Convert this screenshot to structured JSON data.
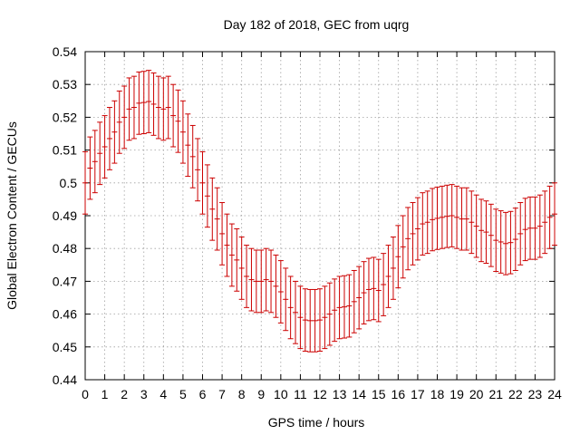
{
  "chart_data": {
    "type": "line",
    "title": "Day 182 of 2018, GEC from uqrg",
    "xlabel": "GPS time / hours",
    "ylabel": "Global Electron Content / GECUs",
    "xlim": [
      0,
      24
    ],
    "ylim": [
      0.44,
      0.54
    ],
    "xticks": [
      "0",
      "1",
      "2",
      "3",
      "4",
      "5",
      "6",
      "7",
      "8",
      "9",
      "10",
      "11",
      "12",
      "13",
      "14",
      "15",
      "16",
      "17",
      "18",
      "19",
      "20",
      "21",
      "22",
      "23",
      "24"
    ],
    "yticks": [
      "0.44",
      "0.45",
      "0.46",
      "0.47",
      "0.48",
      "0.49",
      "0.5",
      "0.51",
      "0.52",
      "0.53",
      "0.54"
    ],
    "grid": true,
    "colors": {
      "series": "#cc0000",
      "grid": "#a0a0a0",
      "axis": "#000000"
    },
    "series": [
      {
        "error": 0.0095,
        "x": [
          0,
          0.25,
          0.5,
          0.75,
          1,
          1.25,
          1.5,
          1.75,
          2,
          2.25,
          2.5,
          2.75,
          3,
          3.25,
          3.5,
          3.75,
          4,
          4.25,
          4.5,
          4.75,
          5,
          5.25,
          5.5,
          5.75,
          6,
          6.25,
          6.5,
          6.75,
          7,
          7.25,
          7.5,
          7.75,
          8,
          8.25,
          8.5,
          8.75,
          9,
          9.25,
          9.5,
          9.75,
          10,
          10.25,
          10.5,
          10.75,
          11,
          11.25,
          11.5,
          11.75,
          12,
          12.25,
          12.5,
          12.75,
          13,
          13.25,
          13.5,
          13.75,
          14,
          14.25,
          14.5,
          14.75,
          15,
          15.25,
          15.5,
          15.75,
          16,
          16.25,
          16.5,
          16.75,
          17,
          17.25,
          17.5,
          17.75,
          18,
          18.25,
          18.5,
          18.75,
          19,
          19.25,
          19.5,
          19.75,
          20,
          20.25,
          20.5,
          20.75,
          21,
          21.25,
          21.5,
          21.75,
          22,
          22.25,
          22.5,
          22.75,
          23,
          23.25,
          23.5,
          23.75,
          24
        ],
        "y": [
          0.5,
          0.5045,
          0.5065,
          0.509,
          0.511,
          0.5135,
          0.5155,
          0.5185,
          0.52,
          0.5225,
          0.523,
          0.5243,
          0.5245,
          0.5248,
          0.524,
          0.523,
          0.5225,
          0.523,
          0.5205,
          0.5188,
          0.5155,
          0.5115,
          0.508,
          0.504,
          0.5,
          0.496,
          0.492,
          0.489,
          0.4845,
          0.481,
          0.478,
          0.4765,
          0.474,
          0.4715,
          0.4705,
          0.47,
          0.47,
          0.4705,
          0.47,
          0.4685,
          0.4668,
          0.4645,
          0.462,
          0.4605,
          0.459,
          0.4582,
          0.458,
          0.458,
          0.4582,
          0.459,
          0.46,
          0.4612,
          0.462,
          0.4622,
          0.4625,
          0.4638,
          0.465,
          0.4665,
          0.4675,
          0.4678,
          0.4672,
          0.469,
          0.4715,
          0.474,
          0.4775,
          0.4805,
          0.483,
          0.4845,
          0.486,
          0.4875,
          0.488,
          0.4888,
          0.4892,
          0.4895,
          0.4898,
          0.49,
          0.4895,
          0.489,
          0.489,
          0.488,
          0.4868,
          0.4855,
          0.485,
          0.484,
          0.4825,
          0.482,
          0.4815,
          0.4818,
          0.4828,
          0.4845,
          0.4858,
          0.4862,
          0.4862,
          0.4868,
          0.488,
          0.4895,
          0.4905
        ]
      }
    ]
  }
}
